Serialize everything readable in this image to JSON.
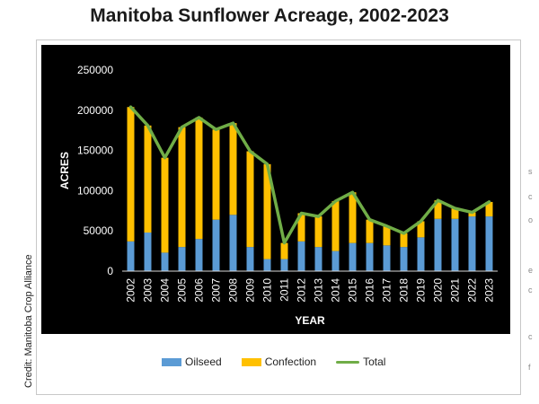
{
  "page": {
    "title": "Manitoba Sunflower Acreage, 2002-2023",
    "credit": "Credit: Manitoba Crop Alliance"
  },
  "colors": {
    "background": "#000000",
    "oilseed": "#5b9bd5",
    "confection": "#ffc000",
    "total": "#70ad47",
    "axis_text": "#ffffff"
  },
  "chart_data": {
    "type": "bar",
    "stacked": true,
    "title": "",
    "xlabel": "YEAR",
    "ylabel": "ACRES",
    "ylim": [
      0,
      250000
    ],
    "yticks": [
      0,
      50000,
      100000,
      150000,
      200000,
      250000
    ],
    "grid": false,
    "legend_position": "bottom",
    "categories": [
      "2002",
      "2003",
      "2004",
      "2005",
      "2006",
      "2007",
      "2008",
      "2009",
      "2010",
      "2011",
      "2012",
      "2013",
      "2014",
      "2015",
      "2016",
      "2017",
      "2018",
      "2019",
      "2020",
      "2021",
      "2022",
      "2023"
    ],
    "series": [
      {
        "name": "Oilseed",
        "type": "bar",
        "color": "#5b9bd5",
        "values": [
          37000,
          48000,
          23000,
          30000,
          40000,
          64000,
          70000,
          30000,
          15000,
          15000,
          37000,
          30000,
          25000,
          35000,
          35000,
          32000,
          30000,
          42000,
          65000,
          65000,
          68000,
          68000
        ]
      },
      {
        "name": "Confection",
        "type": "bar",
        "color": "#ffc000",
        "values": [
          167000,
          133000,
          118000,
          149000,
          151000,
          112000,
          114000,
          119000,
          118000,
          20000,
          35000,
          38000,
          62000,
          63000,
          29000,
          24000,
          17000,
          20000,
          23000,
          13000,
          5000,
          18000
        ]
      },
      {
        "name": "Total",
        "type": "line",
        "color": "#70ad47",
        "values": [
          204000,
          181000,
          141000,
          179000,
          191000,
          176000,
          184000,
          149000,
          133000,
          35000,
          72000,
          68000,
          87000,
          98000,
          64000,
          56000,
          47000,
          62000,
          88000,
          78000,
          73000,
          86000
        ]
      }
    ]
  },
  "legend": {
    "oilseed": "Oilseed",
    "confection": "Confection",
    "total": "Total"
  },
  "edge_glyphs": [
    "s",
    "c",
    "o",
    "e",
    "c",
    "c",
    "f"
  ]
}
